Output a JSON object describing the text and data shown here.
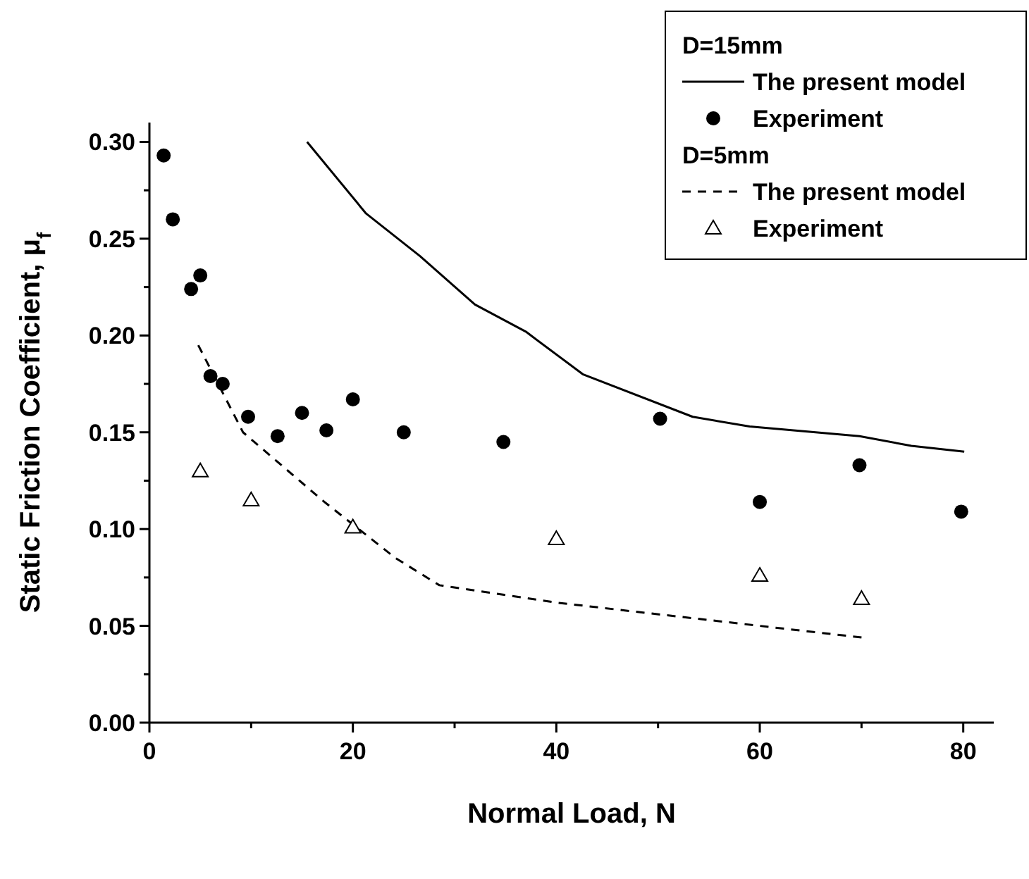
{
  "chart_data": {
    "type": "scatter",
    "xlabel": "Normal Load, N",
    "ylabel": "Static Friction Coefficient, μ$_{f}$",
    "annotations": [
      "D=15mm",
      "D=5mm"
    ],
    "xlim": [
      0,
      83
    ],
    "xticks": [
      0,
      {
        "value": 10,
        "label": null
      },
      20,
      {
        "value": 30,
        "label": null
      },
      40,
      {
        "value": 50,
        "label": null
      },
      60,
      {
        "value": 70,
        "label": null
      },
      80
    ],
    "ylim": [
      0,
      0.31
    ],
    "yticks": [
      {
        "value": 0,
        "label": "0.00"
      },
      {
        "value": 0.025,
        "label": null
      },
      {
        "value": 0.05,
        "label": "0.05"
      },
      {
        "value": 0.075,
        "label": null
      },
      {
        "value": 0.1,
        "label": "0.10"
      },
      {
        "value": 0.125,
        "label": null
      },
      {
        "value": 0.15,
        "label": "0.15"
      },
      {
        "value": 0.175,
        "label": null
      },
      {
        "value": 0.2,
        "label": "0.20"
      },
      {
        "value": 0.225,
        "label": null
      },
      {
        "value": 0.25,
        "label": "0.25"
      },
      {
        "value": 0.275,
        "label": null
      },
      {
        "value": 0.3,
        "label": "0.30"
      }
    ],
    "legend": "top right",
    "grid": false,
    "series": [
      {
        "name": "The present model",
        "type": "line",
        "color": "#000000",
        "line_style": "solid",
        "marker": "none",
        "x": [
          15.5,
          21.3,
          26.6,
          32.0,
          37.0,
          42.6,
          53.4,
          59.0,
          69.8,
          74.9,
          80.1
        ],
        "values": [
          0.3,
          0.263,
          0.241,
          0.216,
          0.202,
          0.18,
          0.158,
          0.153,
          0.148,
          0.143,
          0.14
        ]
      },
      {
        "name": "Experiment",
        "color": "#000000",
        "marker": "circle",
        "x": [
          1.4,
          2.3,
          4.1,
          5.0,
          6.0,
          7.2,
          9.7,
          12.6,
          15.0,
          17.4,
          20.0,
          25.0,
          34.8,
          50.2,
          60.0,
          69.8,
          79.8
        ],
        "values": [
          0.293,
          0.26,
          0.224,
          0.231,
          0.179,
          0.175,
          0.158,
          0.148,
          0.16,
          0.151,
          0.167,
          0.15,
          0.145,
          0.157,
          0.114,
          0.133,
          0.109
        ]
      },
      {
        "name": "The present model",
        "type": "line",
        "color": "#000000",
        "line_style": "dashed",
        "marker": "none",
        "x": [
          4.8,
          9.2,
          17.2,
          24.2,
          28.5,
          40.0,
          55.0,
          70.0
        ],
        "values": [
          0.195,
          0.15,
          0.114,
          0.085,
          0.071,
          0.062,
          0.053,
          0.044
        ]
      },
      {
        "name": "Experiment",
        "color": "#000000",
        "marker": "triangle",
        "x": [
          5,
          10,
          20,
          40,
          60,
          70
        ],
        "values": [
          0.13,
          0.115,
          0.101,
          0.095,
          0.076,
          0.064
        ]
      }
    ]
  }
}
